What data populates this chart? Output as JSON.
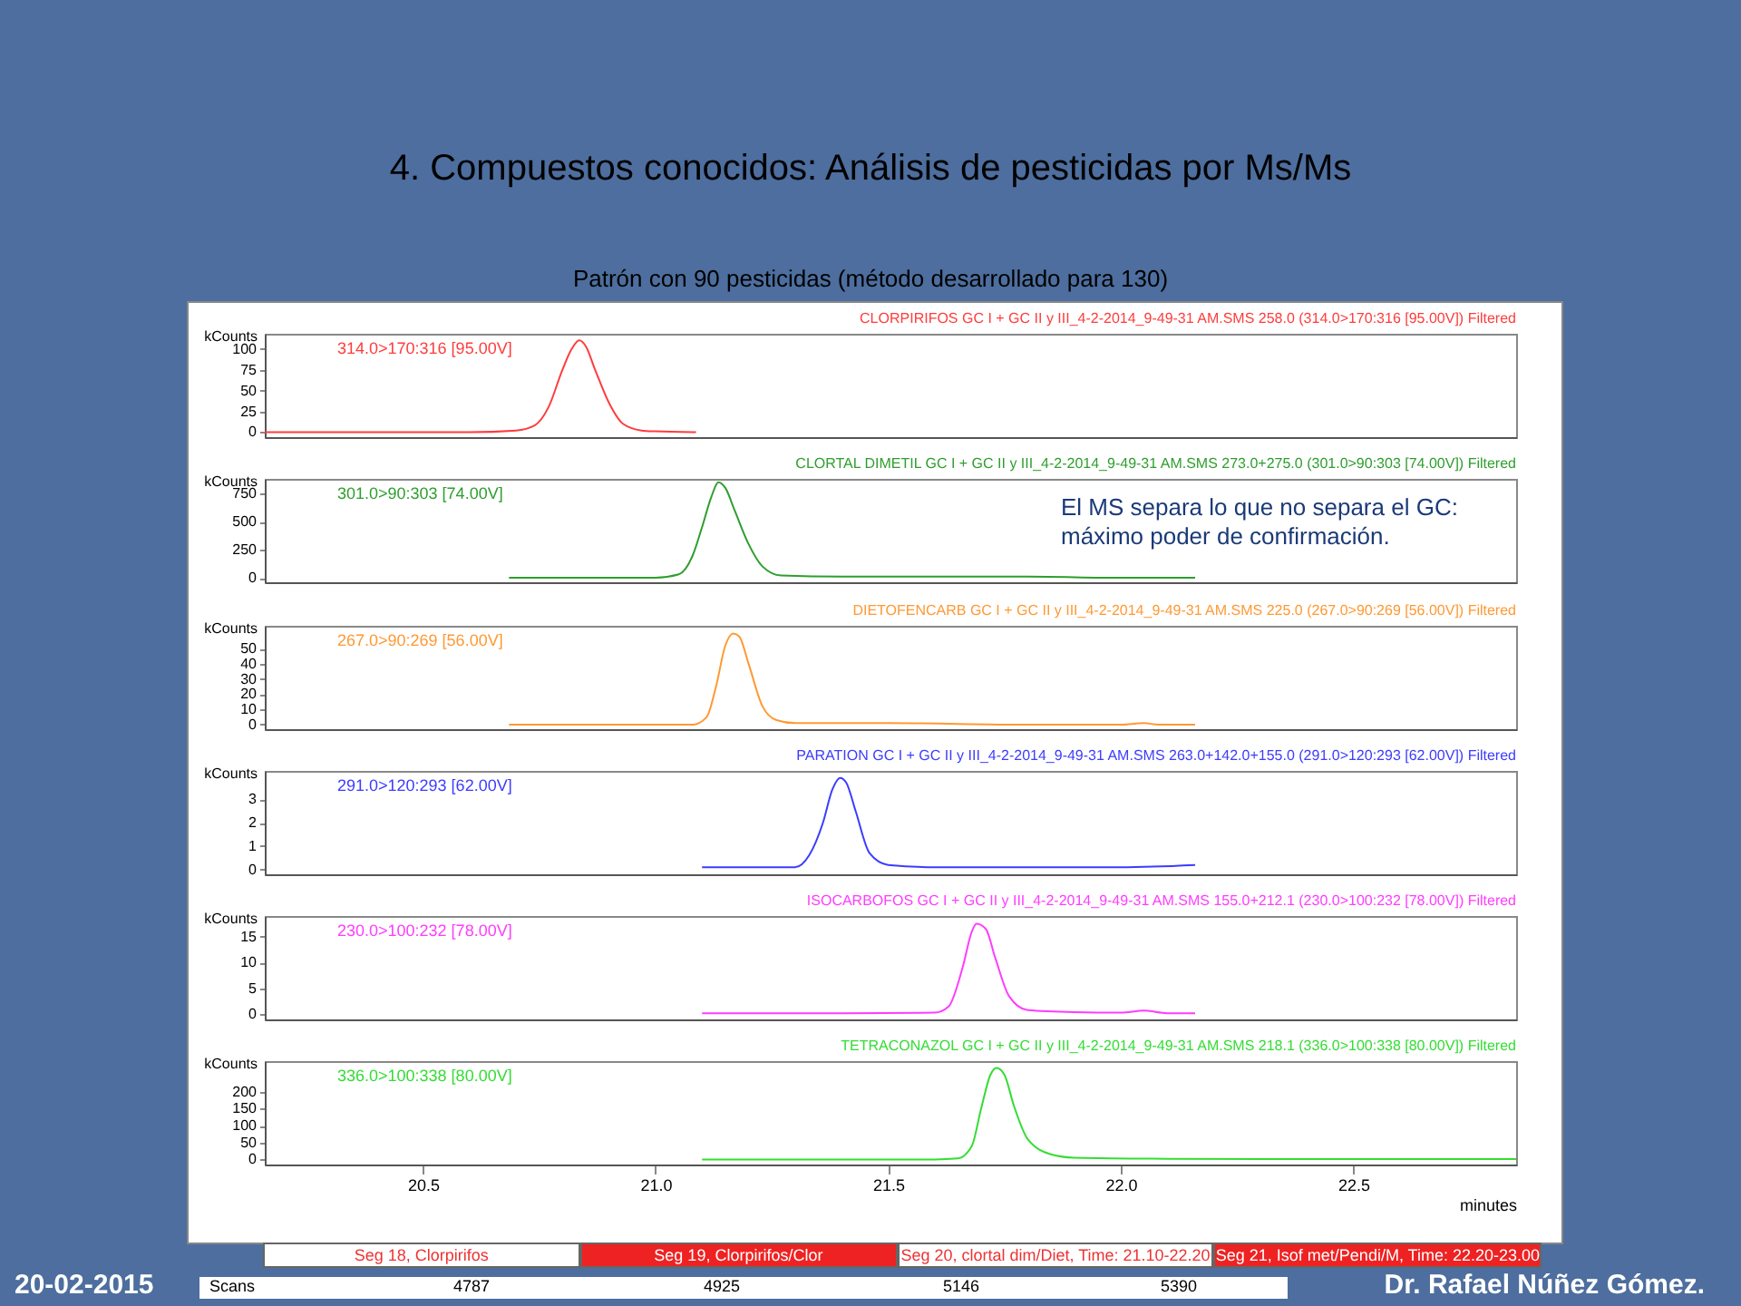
{
  "chart_data": [
    {
      "type": "line",
      "title": "4. Compuestos conocidos: Análisis de pesticidas por Ms/Ms",
      "subtitle": "Patrón con 90 pesticidas (método desarrollado para 130)",
      "ylabel": "kCounts",
      "tick_labels": "y",
      "annotations": [
        "314.0>170:316 [95.00V]",
        "El MS separa lo que no separa el GC: máximo poder de confirmación."
      ],
      "x": [
        20.16,
        20.4,
        20.6,
        20.7,
        20.74,
        20.77,
        20.8,
        20.82,
        20.836,
        20.85,
        20.87,
        20.9,
        20.93,
        20.97,
        21.0,
        21.087
      ],
      "series": [
        {
          "name": "CLORPIRIFOS GC I + GC II y III_4-2-2014_9-49-31 AM.SMS 258.0 (314.0>170:316 [95.00V]) Filtered",
          "color": "#ff3c3c",
          "values": [
            0,
            0,
            0,
            2,
            8,
            30,
            75,
            100,
            110,
            103,
            75,
            35,
            10,
            2,
            1,
            0
          ]
        }
      ],
      "xlim": [
        20.16,
        22.85
      ],
      "ylim": [
        -6,
        118
      ],
      "yticks": [
        0,
        25,
        50,
        75,
        100
      ]
    },
    {
      "type": "line",
      "ylabel": "kCounts",
      "tick_labels": "y",
      "annotations": [
        "301.0>90:303 [74.00V]"
      ],
      "x": [
        20.685,
        20.9,
        21.0,
        21.05,
        21.08,
        21.1,
        21.12,
        21.135,
        21.15,
        21.17,
        21.2,
        21.23,
        21.27,
        21.4,
        21.6,
        21.8,
        22.0,
        22.16
      ],
      "series": [
        {
          "name": "CLORTAL DIMETIL GC I + GC II y III_4-2-2014_9-49-31 AM.SMS 273.0+275.0 (301.0>90:303 [74.00V]) Filtered",
          "color": "#2e9e2e",
          "values": [
            0,
            0,
            0,
            30,
            200,
            450,
            720,
            850,
            800,
            600,
            300,
            100,
            20,
            10,
            10,
            10,
            0,
            0
          ]
        }
      ],
      "xlim": [
        20.16,
        22.85
      ],
      "ylim": [
        -40,
        880
      ],
      "yticks": [
        0,
        250,
        500,
        750
      ]
    },
    {
      "type": "line",
      "ylabel": "kCounts",
      "tick_labels": "y",
      "annotations": [
        "267.0>90:269 [56.00V]"
      ],
      "x": [
        20.685,
        21.0,
        21.08,
        21.11,
        21.13,
        21.15,
        21.167,
        21.18,
        21.2,
        21.23,
        21.26,
        21.3,
        21.5,
        21.8,
        22.0,
        22.05,
        22.08,
        22.16
      ],
      "series": [
        {
          "name": "DIETOFENCARB GC I + GC II y III_4-2-2014_9-49-31 AM.SMS 225.0 (267.0>90:269 [56.00V]) Filtered",
          "color": "#ff9933",
          "values": [
            0,
            0,
            0,
            5,
            25,
            52,
            60,
            58,
            40,
            12,
            3,
            1,
            1,
            0,
            0,
            1,
            0,
            0
          ]
        }
      ],
      "xlim": [
        20.16,
        22.85
      ],
      "ylim": [
        -3,
        65
      ],
      "yticks": [
        0,
        10,
        20,
        30,
        40,
        50
      ]
    },
    {
      "type": "line",
      "ylabel": "kCounts",
      "tick_labels": "y",
      "annotations": [
        "291.0>120:293 [62.00V]"
      ],
      "x": [
        21.1,
        21.2,
        21.3,
        21.33,
        21.36,
        21.38,
        21.397,
        21.41,
        21.43,
        21.46,
        21.5,
        21.6,
        21.8,
        22.0,
        22.16
      ],
      "series": [
        {
          "name": "PARATION GC I + GC II y III_4-2-2014_9-49-31 AM.SMS 263.0+142.0+155.0 (291.0>120:293 [62.00V]) Filtered",
          "color": "#3c3cff",
          "values": [
            0.1,
            0.1,
            0.1,
            0.6,
            2,
            3.4,
            3.9,
            3.7,
            2.5,
            0.7,
            0.2,
            0.1,
            0.1,
            0.1,
            0.2
          ]
        }
      ],
      "xlim": [
        20.16,
        22.85
      ],
      "ylim": [
        -0.2,
        4.2
      ],
      "yticks": [
        0,
        1,
        2,
        3
      ]
    },
    {
      "type": "line",
      "ylabel": "kCounts",
      "tick_labels": "y",
      "annotations": [
        "230.0>100:232 [78.00V]"
      ],
      "x": [
        21.1,
        21.4,
        21.6,
        21.63,
        21.66,
        21.68,
        21.69,
        21.71,
        21.73,
        21.76,
        21.8,
        21.9,
        22.0,
        22.05,
        22.1,
        22.16
      ],
      "series": [
        {
          "name": "ISOCARBOFOS GC I + GC II y III_4-2-2014_9-49-31 AM.SMS 155.0+212.1 (230.0>100:232 [78.00V]) Filtered",
          "color": "#ff3cff",
          "values": [
            0.2,
            0.2,
            0.3,
            1.5,
            9,
            16,
            17.5,
            16.5,
            11,
            3.5,
            0.8,
            0.4,
            0.3,
            0.7,
            0.2,
            0.2
          ]
        }
      ],
      "xlim": [
        20.16,
        22.85
      ],
      "ylim": [
        -1,
        19
      ],
      "yticks": [
        0,
        5,
        10,
        15
      ]
    },
    {
      "type": "line",
      "xlabel": "minutes",
      "ylabel": "kCounts",
      "annotations": [
        "336.0>100:338 [80.00V]",
        "Seg 18, Clorpirifos",
        "Seg 19, Clorpirifos/Clor",
        "Seg 20, clortal dim/Diet, Time: 21.10-22.20",
        "Seg 21, Isof met/Pendi/M, Time: 22.20-23.00",
        "Scans",
        "4787",
        "4925",
        "5146",
        "5390",
        "20-02-2015",
        "Dr. Rafael Núñez Gómez."
      ],
      "x": [
        21.1,
        21.4,
        21.6,
        21.65,
        21.68,
        21.7,
        21.72,
        21.733,
        21.75,
        21.77,
        21.8,
        21.85,
        21.9,
        22.1,
        22.5,
        22.85
      ],
      "series": [
        {
          "name": "TETRACONAZOL GC I + GC II y III_4-2-2014_9-49-31 AM.SMS 218.1 (336.0>100:338 [80.00V]) Filtered",
          "color": "#33dd33",
          "values": [
            0,
            0,
            0,
            3,
            40,
            150,
            250,
            270,
            250,
            160,
            60,
            15,
            5,
            2,
            1,
            1
          ]
        }
      ],
      "xlim": [
        20.16,
        22.85
      ],
      "xticks": [
        {
          "value": 20.5,
          "label": "20.5"
        },
        {
          "value": 21,
          "label": "21.0"
        },
        {
          "value": 21.5,
          "label": "21.5"
        },
        {
          "value": 22,
          "label": "22.0"
        },
        {
          "value": 22.5,
          "label": "22.5"
        }
      ],
      "ylim": [
        -15,
        290
      ],
      "yticks": [
        0,
        50,
        100,
        150,
        200
      ]
    }
  ]
}
